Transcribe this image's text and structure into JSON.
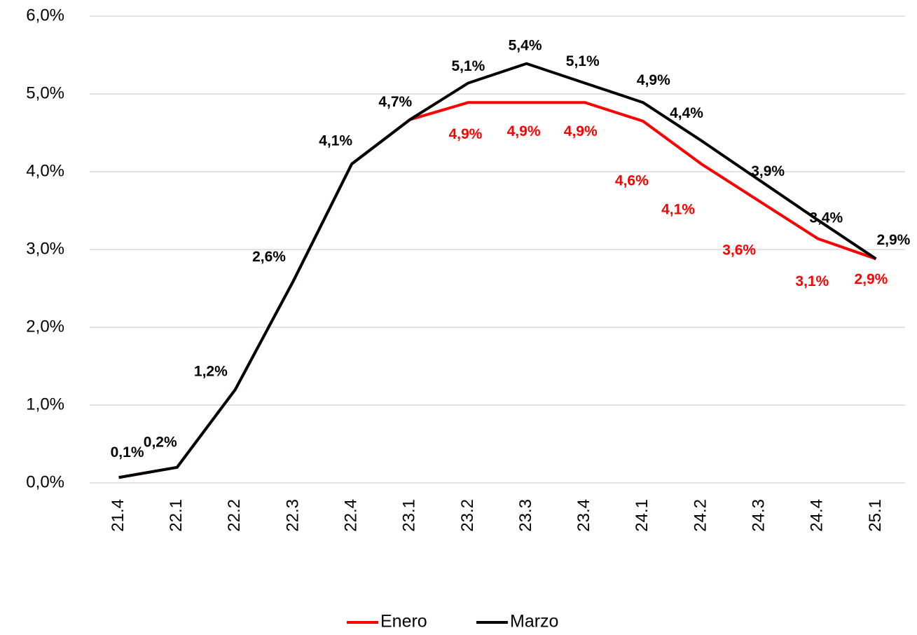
{
  "chart_data": {
    "type": "line",
    "categories": [
      "21.4",
      "22.1",
      "22.2",
      "22.3",
      "22.4",
      "23.1",
      "23.2",
      "23.3",
      "23.4",
      "24.1",
      "24.2",
      "24.3",
      "24.4",
      "25.1"
    ],
    "series": [
      {
        "name": "Enero",
        "color": "#ff0000",
        "values": [
          0.07,
          0.2,
          1.2,
          2.6,
          4.1,
          4.67,
          4.89,
          4.89,
          4.89,
          4.65,
          4.1,
          3.62,
          3.14,
          2.88
        ],
        "value_labels": [
          null,
          null,
          null,
          null,
          null,
          null,
          "4,9%",
          "4,9%",
          "4,9%",
          "4,6%",
          "4,1%",
          "3,6%",
          "3,1%",
          "2,9%"
        ]
      },
      {
        "name": "Marzo",
        "color": "#000000",
        "values": [
          0.07,
          0.2,
          1.2,
          2.6,
          4.1,
          4.67,
          5.14,
          5.39,
          5.14,
          4.89,
          4.4,
          3.89,
          3.38,
          2.88
        ],
        "value_labels": [
          "0,1%",
          "0,2%",
          "1,2%",
          "2,6%",
          "4,1%",
          "4,7%",
          "5,1%",
          "5,4%",
          "5,1%",
          "4,9%",
          "4,4%",
          "3,9%",
          "3,4%",
          "2,9%"
        ]
      }
    ],
    "ylim": [
      0,
      6
    ],
    "yticks": [
      {
        "value": 0,
        "label": "0,0%"
      },
      {
        "value": 1,
        "label": "1,0%"
      },
      {
        "value": 2,
        "label": "2,0%"
      },
      {
        "value": 3,
        "label": "3,0%"
      },
      {
        "value": 4,
        "label": "4,0%"
      },
      {
        "value": 5,
        "label": "5,0%"
      },
      {
        "value": 6,
        "label": "6,0%"
      }
    ],
    "grid": true,
    "legend": "bottom"
  }
}
